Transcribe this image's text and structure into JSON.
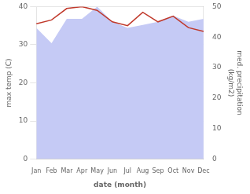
{
  "chart_data": {
    "type": "line",
    "categories": [
      "Jan",
      "Feb",
      "Mar",
      "Apr",
      "May",
      "Jun",
      "Jul",
      "Aug",
      "Sep",
      "Oct",
      "Nov",
      "Dec"
    ],
    "series": [
      {
        "type": "area",
        "axis": "y2",
        "color": "#c5caf5",
        "values": [
          43.0,
          38.0,
          46.0,
          46.0,
          50.0,
          45.0,
          43.0,
          44.0,
          45.0,
          47.0,
          45.0,
          46.0
        ]
      },
      {
        "type": "line",
        "color": "#c0392b",
        "values": [
          35.5,
          36.5,
          39.5,
          40.0,
          39.0,
          36.0,
          35.0,
          38.5,
          36.0,
          37.5,
          34.5,
          33.5
        ]
      }
    ],
    "xlabel": "date (month)",
    "ylabel": "max temp (C)",
    "y2label": "med. precipitation\n(kg/m2)",
    "ylim": [
      0,
      40
    ],
    "yticks": [
      0,
      10,
      20,
      30,
      40
    ],
    "y2lim": [
      0,
      50
    ],
    "y2ticks": [
      0,
      10,
      20,
      30,
      40,
      50
    ],
    "grid": true
  }
}
